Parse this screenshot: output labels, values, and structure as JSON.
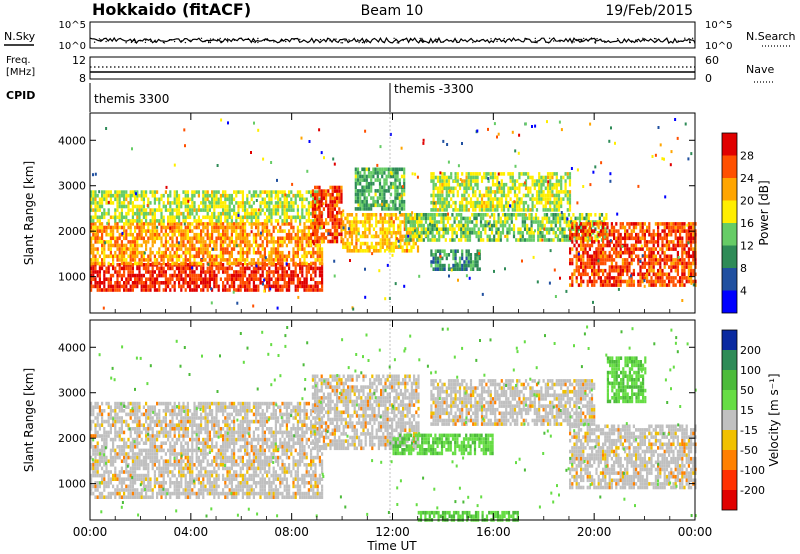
{
  "header": {
    "title": "Hokkaido (fitACF)",
    "beam": "Beam 10",
    "date": "19/Feb/2015"
  },
  "noise_panel": {
    "left_label": "N.Sky",
    "right_label": "N.Search",
    "left_ticks": [
      "10^5",
      "10^0"
    ],
    "right_ticks": [
      "10^5",
      "10^0"
    ]
  },
  "freq_panel": {
    "left_label_1": "Freq.",
    "left_label_2": "[MHz]",
    "left_ticks": [
      "12",
      "8"
    ],
    "right_label": "Nave",
    "right_ticks": [
      "60",
      "0"
    ]
  },
  "cpid": {
    "label": "CPID",
    "segments": [
      {
        "label": "themis 3300",
        "start_hour": 0
      },
      {
        "label": "themis -3300",
        "start_hour": 12
      }
    ]
  },
  "axes": {
    "xlabel": "Time UT",
    "ylabel": "Slant Range [km]",
    "x_ticks": [
      "00:00",
      "04:00",
      "08:00",
      "12:00",
      "16:00",
      "20:00",
      "00:00"
    ],
    "y_ticks": [
      "1000",
      "2000",
      "3000",
      "4000"
    ]
  },
  "colorbars": {
    "power": {
      "label": "Power [dB]",
      "ticks": [
        "4",
        "8",
        "12",
        "16",
        "20",
        "24",
        "28"
      ],
      "colors": [
        "#0000ff",
        "#2050a0",
        "#2e8b57",
        "#66cc66",
        "#ffee00",
        "#ffa500",
        "#ff5000",
        "#e00000"
      ]
    },
    "velocity": {
      "label": "Velocity [m s⁻¹]",
      "ticks": [
        "200",
        "100",
        "50",
        "15",
        "-15",
        "-50",
        "-100",
        "-200"
      ],
      "colors": [
        "#0a2aa0",
        "#2e8b57",
        "#4cbb3a",
        "#66dd44",
        "#c0c0c0",
        "#f0c000",
        "#ff8000",
        "#ff3000",
        "#e00000"
      ]
    }
  },
  "chart_data": [
    {
      "type": "heatmap",
      "title": "Power",
      "xlabel": "Time UT",
      "ylabel": "Slant Range [km]",
      "xlim": [
        0,
        24
      ],
      "ylim": [
        200,
        4600
      ],
      "colorbar_label": "Power [dB]",
      "features": [
        {
          "t0": 0,
          "t1": 9.2,
          "r0": 700,
          "r1": 1300,
          "level": 28
        },
        {
          "t0": 0,
          "t1": 9.2,
          "r0": 1300,
          "r1": 2200,
          "level": 22
        },
        {
          "t0": 0,
          "t1": 9.2,
          "r0": 2200,
          "r1": 2900,
          "level": 16
        },
        {
          "t0": 8.8,
          "t1": 10.0,
          "r0": 1800,
          "r1": 3000,
          "level": 26
        },
        {
          "t0": 10.0,
          "t1": 13.0,
          "r0": 1600,
          "r1": 2400,
          "level": 20
        },
        {
          "t0": 10.5,
          "t1": 12.5,
          "r0": 2500,
          "r1": 3400,
          "level": 12
        },
        {
          "t0": 12.5,
          "t1": 20.5,
          "r0": 1800,
          "r1": 2400,
          "level": 14
        },
        {
          "t0": 13.5,
          "t1": 19.0,
          "r0": 2500,
          "r1": 3300,
          "level": 16
        },
        {
          "t0": 13.5,
          "t1": 15.5,
          "r0": 1200,
          "r1": 1600,
          "level": 10
        },
        {
          "t0": 19.0,
          "t1": 24.0,
          "r0": 800,
          "r1": 2200,
          "level": 26
        }
      ]
    },
    {
      "type": "heatmap",
      "title": "Velocity",
      "xlabel": "Time UT",
      "ylabel": "Slant Range [km]",
      "xlim": [
        0,
        24
      ],
      "ylim": [
        200,
        4600
      ],
      "colorbar_label": "Velocity [m s⁻¹]",
      "features": [
        {
          "t0": 0,
          "t1": 9.2,
          "r0": 700,
          "r1": 2800,
          "level": 0
        },
        {
          "t0": 8.8,
          "t1": 13.0,
          "r0": 1800,
          "r1": 3400,
          "level": 0
        },
        {
          "t0": 12.0,
          "t1": 16.0,
          "r0": 1700,
          "r1": 2100,
          "level": 40
        },
        {
          "t0": 13.5,
          "t1": 20.0,
          "r0": 2300,
          "r1": 3300,
          "level": 0
        },
        {
          "t0": 19.0,
          "t1": 24.0,
          "r0": 900,
          "r1": 2300,
          "level": 0
        },
        {
          "t0": 20.5,
          "t1": 22.0,
          "r0": 2800,
          "r1": 3800,
          "level": 40
        },
        {
          "t0": 13.0,
          "t1": 17.0,
          "r0": 200,
          "r1": 400,
          "level": 40
        }
      ]
    }
  ]
}
